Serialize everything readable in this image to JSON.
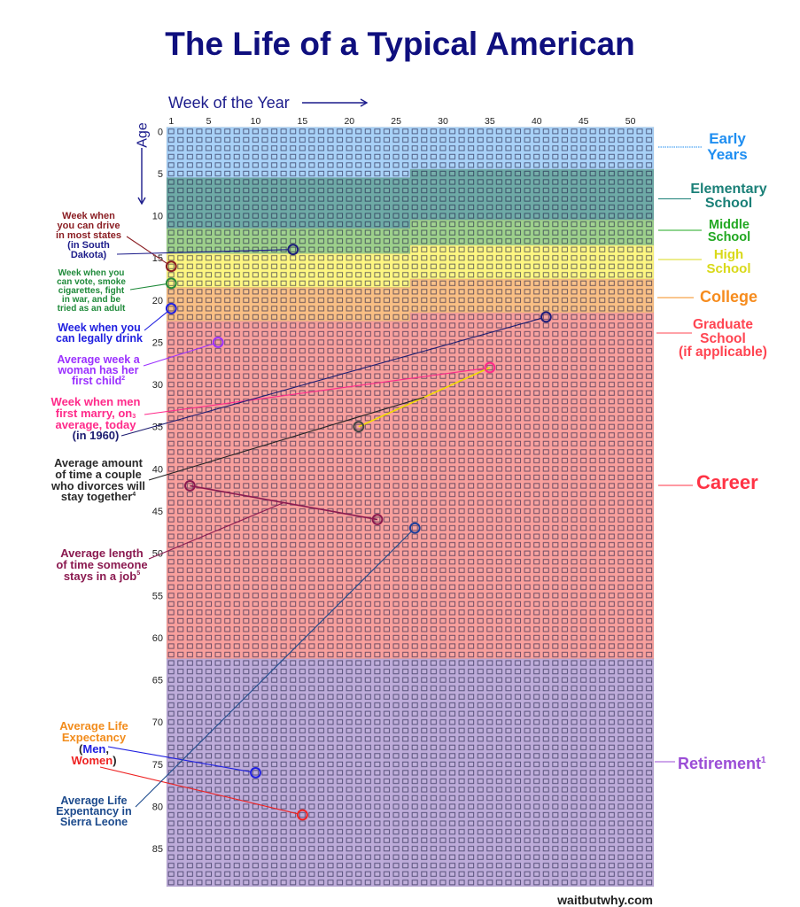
{
  "page": {
    "title": "The Life of a Typical American",
    "watermark": "waitbutwhy.com"
  },
  "chart_data": {
    "type": "heatmap",
    "title": "The Life of a Typical American",
    "xlabel": "Week of the Year",
    "ylabel": "Age",
    "x_range": [
      1,
      52
    ],
    "y_range": [
      0,
      89
    ],
    "x_ticks": [
      1,
      5,
      10,
      15,
      20,
      25,
      30,
      35,
      40,
      45,
      50
    ],
    "y_ticks": [
      0,
      5,
      10,
      15,
      20,
      25,
      30,
      35,
      40,
      45,
      50,
      55,
      60,
      65,
      70,
      75,
      80,
      85
    ],
    "grid": "one box per week of life",
    "bands": [
      {
        "id": "early-years",
        "name": "Early Years",
        "start": {
          "age": 0,
          "week": 1
        },
        "end": {
          "age": 5,
          "week": 26
        },
        "fill": "#a8d1f7"
      },
      {
        "id": "elementary-school",
        "name": "Elementary School",
        "start": {
          "age": 5,
          "week": 27
        },
        "end": {
          "age": 11,
          "week": 26
        },
        "fill": "#6eaaa6"
      },
      {
        "id": "middle-school",
        "name": "Middle School",
        "start": {
          "age": 11,
          "week": 27
        },
        "end": {
          "age": 14,
          "week": 26
        },
        "fill": "#9dd08b"
      },
      {
        "id": "high-school",
        "name": "High School",
        "start": {
          "age": 14,
          "week": 27
        },
        "end": {
          "age": 18,
          "week": 26
        },
        "fill": "#fdf681"
      },
      {
        "id": "college",
        "name": "College",
        "start": {
          "age": 18,
          "week": 27
        },
        "end": {
          "age": 22,
          "week": 26
        },
        "fill": "#f9bf84"
      },
      {
        "id": "career",
        "name": "Graduate School (if applicable) / Career",
        "start": {
          "age": 22,
          "week": 27
        },
        "end": {
          "age": 62,
          "week": 52
        },
        "fill": "#f89f9c"
      },
      {
        "id": "retirement",
        "name": "Retirement",
        "start": {
          "age": 63,
          "week": 1
        },
        "end": {
          "age": 89,
          "week": 52
        },
        "fill": "#bdabd9"
      }
    ],
    "band_labels": [
      {
        "id": "early-years",
        "lines": [
          "Early",
          "Years"
        ],
        "color": "#1f8ef1"
      },
      {
        "id": "elementary-school",
        "lines": [
          "Elementary",
          "School"
        ],
        "color": "#1b8078"
      },
      {
        "id": "middle-school",
        "lines": [
          "Middle",
          "School"
        ],
        "color": "#22a822"
      },
      {
        "id": "high-school",
        "lines": [
          "High",
          "School"
        ],
        "color": "#d9d91a"
      },
      {
        "id": "college",
        "lines": [
          "College"
        ],
        "color": "#f68c1e"
      },
      {
        "id": "graduate-school",
        "lines": [
          "Graduate",
          "School",
          "(if applicable)"
        ],
        "color": "#ff4552"
      },
      {
        "id": "career",
        "lines": [
          "Career"
        ],
        "color": "#ff3345"
      },
      {
        "id": "retirement",
        "lines": [
          "Retirement"
        ],
        "footnote": "1",
        "color": "#9b4ed6"
      }
    ],
    "markers": [
      {
        "id": "drive-south-dakota",
        "week": 14,
        "age": 14,
        "color": "#1c1c7a"
      },
      {
        "id": "drive",
        "week": 1,
        "age": 16,
        "color": "#8b1e23"
      },
      {
        "id": "vote",
        "week": 1,
        "age": 18,
        "color": "#2a8a3a"
      },
      {
        "id": "drink",
        "week": 1,
        "age": 21,
        "color": "#2020e0"
      },
      {
        "id": "first-child",
        "week": 6,
        "age": 25,
        "color": "#9b30ff"
      },
      {
        "id": "marry-today",
        "week": 35,
        "age": 28,
        "color": "#ff2a8a"
      },
      {
        "id": "marry-1960",
        "week": 41,
        "age": 22,
        "color": "#1c1c7a"
      },
      {
        "id": "divorce",
        "week": 21,
        "age": 35,
        "color": "#444444"
      },
      {
        "id": "job-start",
        "week": 3,
        "age": 42,
        "color": "#8b1a4f"
      },
      {
        "id": "job-end",
        "week": 23,
        "age": 46,
        "color": "#8b1a4f"
      },
      {
        "id": "sierra-leone",
        "week": 27,
        "age": 47,
        "color": "#1c3f9c"
      },
      {
        "id": "life-men",
        "week": 10,
        "age": 76,
        "color": "#2020e0"
      },
      {
        "id": "life-women",
        "week": 15,
        "age": 81,
        "color": "#ee2222"
      }
    ],
    "spans": [
      {
        "id": "marriage-to-divorce",
        "from": "marry-today",
        "to": "divorce",
        "color": "#f2dc00"
      },
      {
        "id": "job-tenure",
        "from": "job-start",
        "to": "job-end",
        "color": "#8b1a4f"
      }
    ],
    "annotations": [
      {
        "id": "drive",
        "lines": [
          "Week when",
          "you can drive",
          "in most states"
        ],
        "color": "#8b1e23",
        "target": "drive"
      },
      {
        "id": "drive-south-dakota",
        "lines": [
          "(in South",
          "Dakota)"
        ],
        "color": "#1c1c8a",
        "target": "drive-south-dakota"
      },
      {
        "id": "vote",
        "lines": [
          "Week when you",
          "can vote, smoke",
          "cigarettes, fight",
          "in war, and be",
          "tried as an adult"
        ],
        "color": "#1f8a3a",
        "target": "vote"
      },
      {
        "id": "drink",
        "lines": [
          "Week when you",
          "can legally drink"
        ],
        "color": "#2020e0",
        "target": "drink"
      },
      {
        "id": "first-child",
        "lines": [
          "Average week a",
          "woman has her",
          "first child"
        ],
        "footnote": "2",
        "color": "#9b30ff",
        "target": "first-child"
      },
      {
        "id": "marry-today",
        "lines": [
          "Week when men",
          "first marry, on",
          "average, today"
        ],
        "footnote": "3",
        "color": "#ff2a8a",
        "target": "marry-today"
      },
      {
        "id": "marry-1960",
        "lines": [
          "(in 1960)"
        ],
        "color": "#1c1c70",
        "target": "marry-1960"
      },
      {
        "id": "divorce",
        "lines": [
          "Average amount",
          "of time a couple",
          "who divorces will",
          "stay together"
        ],
        "footnote": "4",
        "color": "#2a2a2a",
        "target_span": "marriage-to-divorce"
      },
      {
        "id": "job",
        "lines": [
          "Average length",
          "of time someone",
          "stays in a job"
        ],
        "footnote": "5",
        "color": "#8b1a50",
        "target_span": "job-tenure"
      },
      {
        "id": "life-expectancy",
        "lines": [
          "Average Life",
          "Expectancy"
        ],
        "color": "#f28c1c",
        "open": "(",
        "comma": ",",
        "close": ")",
        "punct_color": "#222222"
      },
      {
        "id": "life-men",
        "lines": [
          "Men"
        ],
        "color": "#2020e0",
        "target": "life-men"
      },
      {
        "id": "life-women",
        "lines": [
          "Women"
        ],
        "color": "#ee2222",
        "target": "life-women"
      },
      {
        "id": "sierra-leone",
        "lines": [
          "Average Life",
          "Expentancy in",
          "Sierra Leone"
        ],
        "color": "#1c4a8c",
        "target": "sierra-leone"
      }
    ]
  }
}
